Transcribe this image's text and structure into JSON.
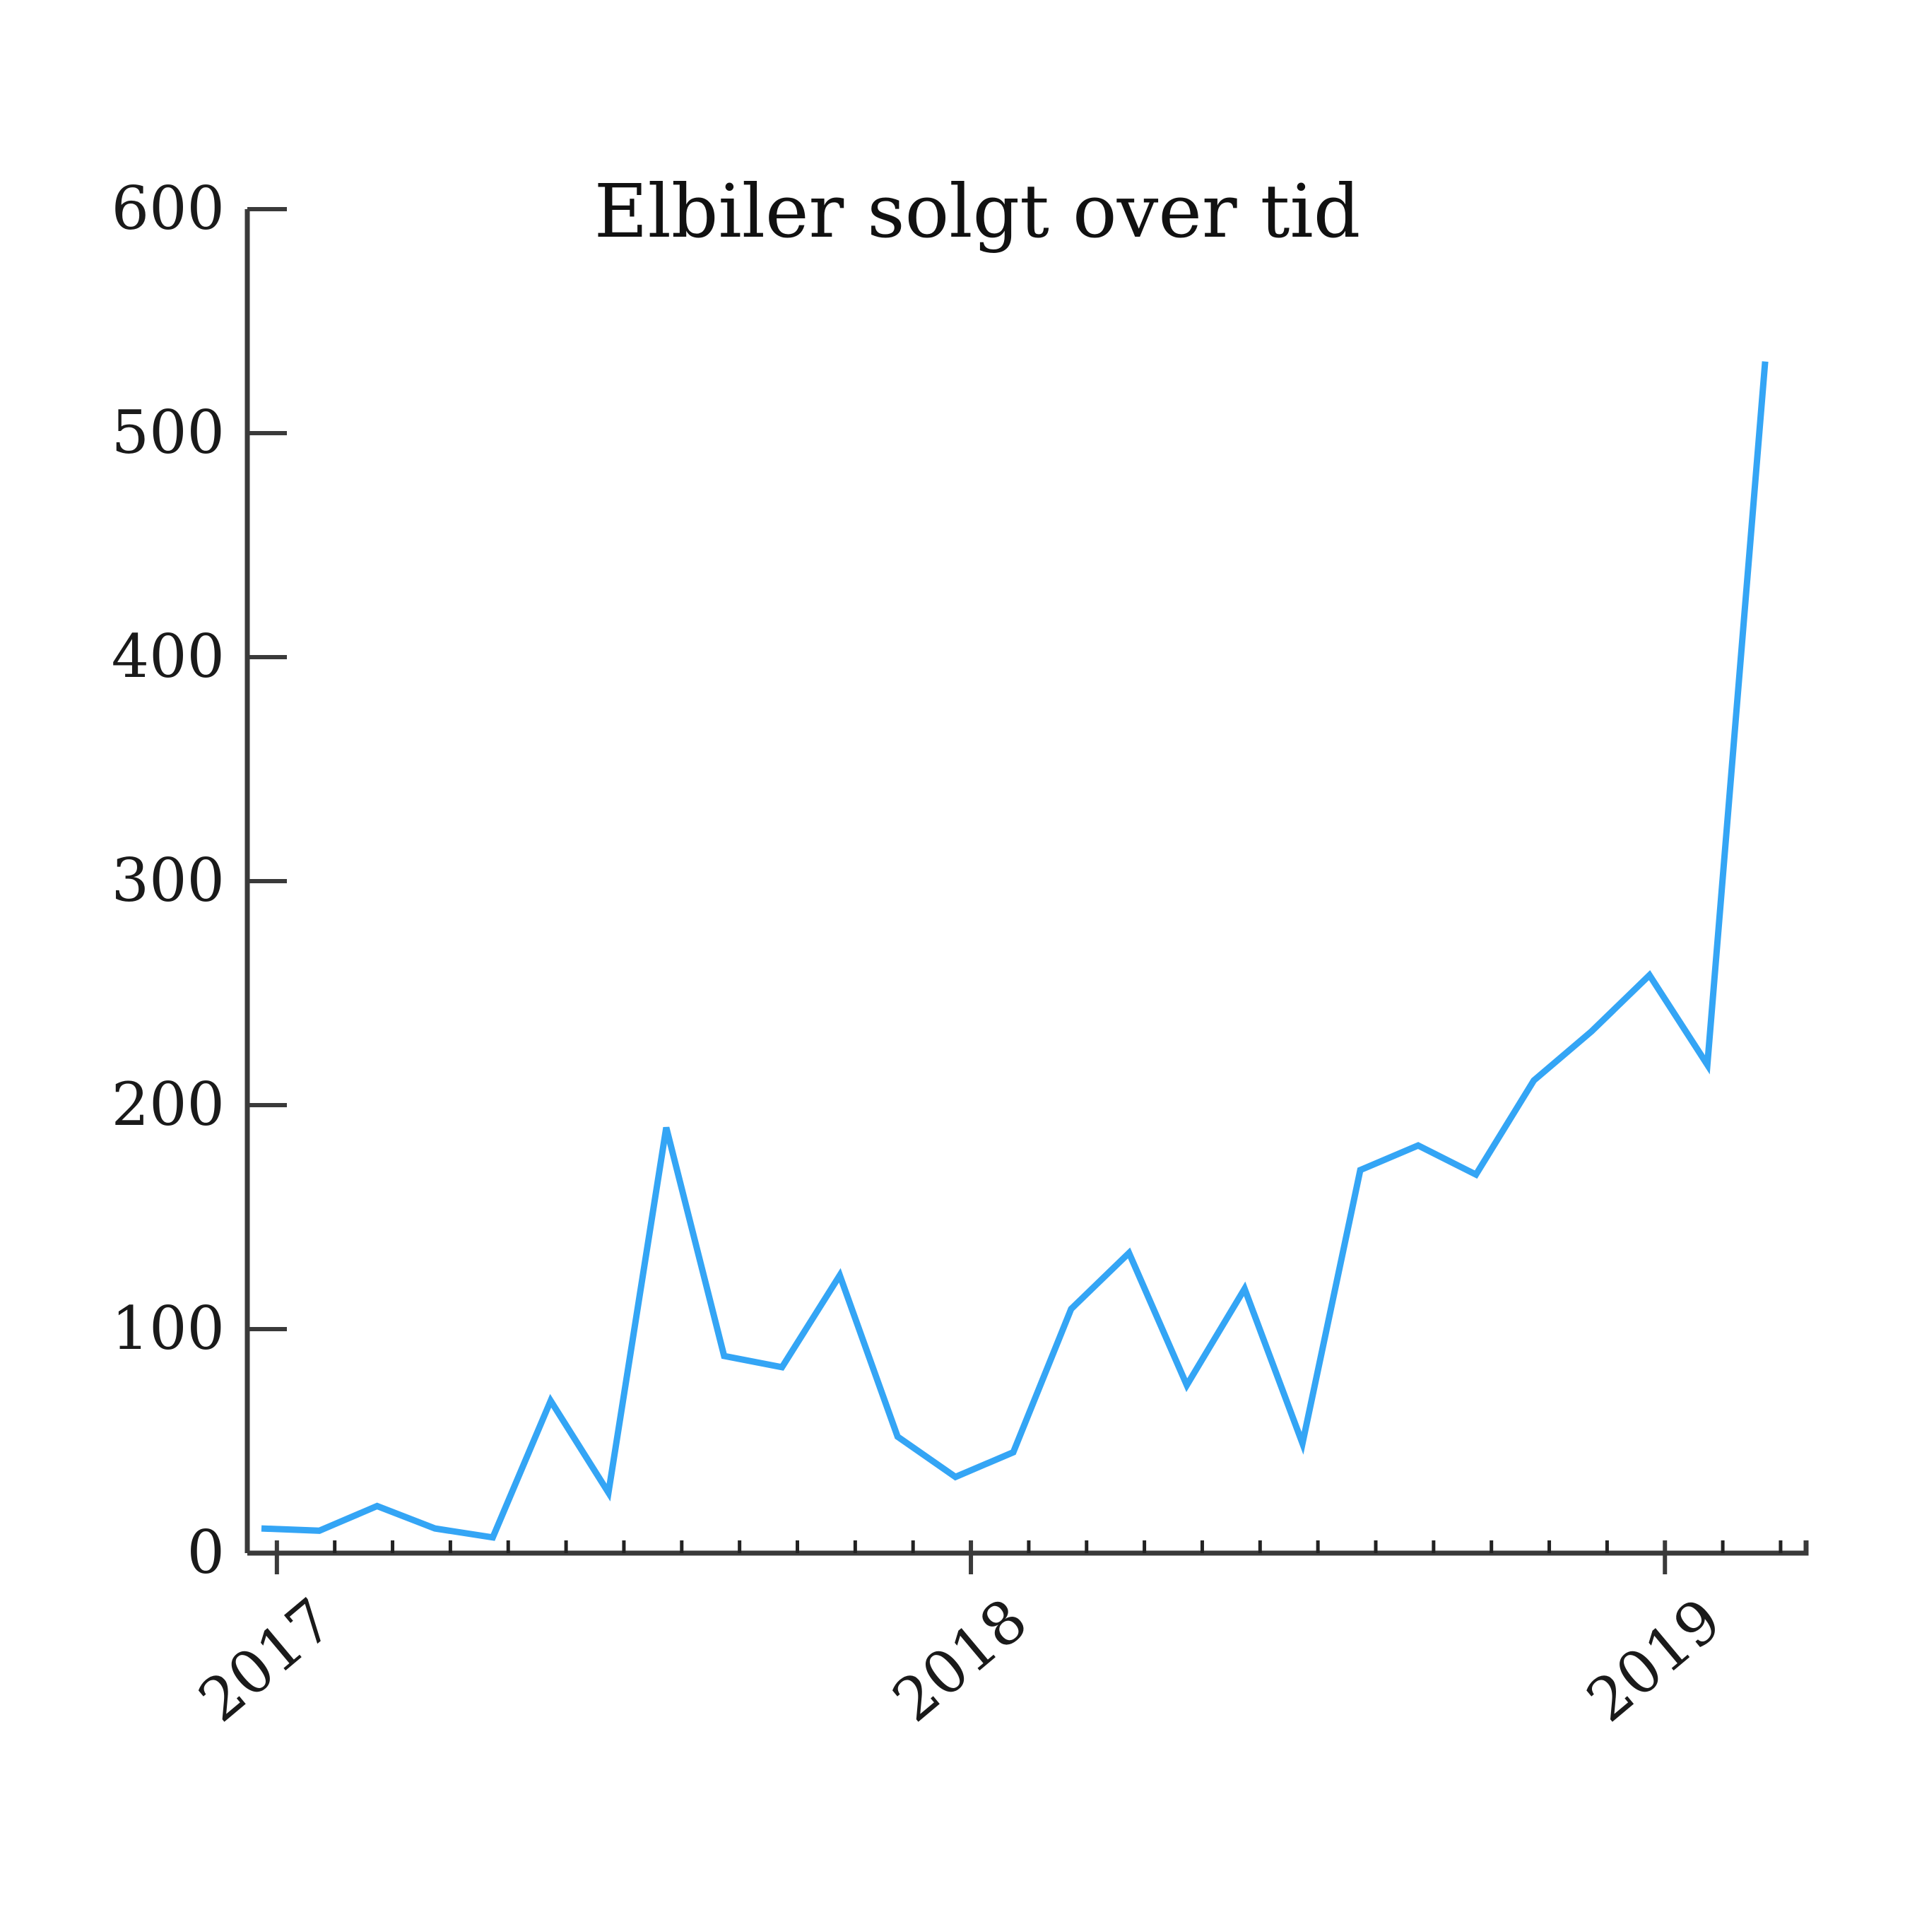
{
  "chart_data": {
    "type": "line",
    "title": "Elbiler solgt over tid",
    "xlabel": "",
    "ylabel": "",
    "ylim": [
      0,
      600
    ],
    "yticks": [
      0,
      100,
      200,
      300,
      400,
      500,
      600
    ],
    "xticks": [
      {
        "label": "2017",
        "month_index": 1
      },
      {
        "label": "2018",
        "month_index": 13
      },
      {
        "label": "2019",
        "month_index": 25
      }
    ],
    "x_tick_label_rotation": -40,
    "grid": false,
    "legend": null,
    "x": [
      "2016-12",
      "2017-01",
      "2017-02",
      "2017-03",
      "2017-04",
      "2017-05",
      "2017-06",
      "2017-07",
      "2017-08",
      "2017-09",
      "2017-10",
      "2017-11",
      "2017-12",
      "2018-01",
      "2018-02",
      "2018-03",
      "2018-04",
      "2018-05",
      "2018-06",
      "2018-07",
      "2018-08",
      "2018-09",
      "2018-10",
      "2018-11",
      "2018-12",
      "2019-01",
      "2019-02"
    ],
    "series": [
      {
        "name": "Elbiler solgt",
        "color": "#34a5f5",
        "values": [
          11,
          10,
          21,
          11,
          7,
          68,
          27,
          190,
          88,
          83,
          124,
          52,
          34,
          45,
          109,
          134,
          75,
          118,
          49,
          171,
          182,
          169,
          211,
          233,
          258,
          218,
          532
        ]
      }
    ]
  },
  "layout": {
    "axis_color": "#3a3a3a",
    "background": "#ffffff"
  }
}
